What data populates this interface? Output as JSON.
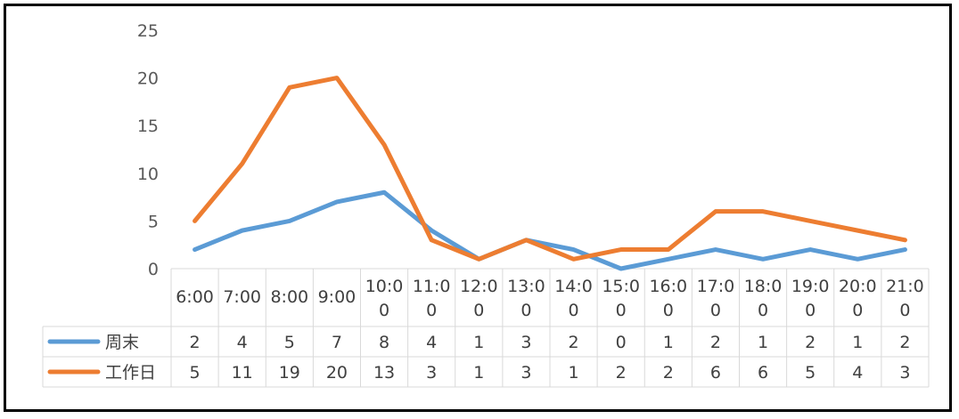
{
  "chart_data": {
    "type": "line",
    "categories": [
      "6:00",
      "7:00",
      "8:00",
      "9:00",
      "10:00",
      "11:00",
      "12:00",
      "13:00",
      "14:00",
      "15:00",
      "16:00",
      "17:00",
      "18:00",
      "19:00",
      "20:00",
      "21:00"
    ],
    "category_lines": [
      [
        "6:00"
      ],
      [
        "7:00"
      ],
      [
        "8:00"
      ],
      [
        "9:00"
      ],
      [
        "10:0",
        "0"
      ],
      [
        "11:0",
        "0"
      ],
      [
        "12:0",
        "0"
      ],
      [
        "13:0",
        "0"
      ],
      [
        "14:0",
        "0"
      ],
      [
        "15:0",
        "0"
      ],
      [
        "16:0",
        "0"
      ],
      [
        "17:0",
        "0"
      ],
      [
        "18:0",
        "0"
      ],
      [
        "19:0",
        "0"
      ],
      [
        "20:0",
        "0"
      ],
      [
        "21:0",
        "0"
      ]
    ],
    "series": [
      {
        "name": "周末",
        "color": "#5B9BD5",
        "values": [
          2,
          4,
          5,
          7,
          8,
          4,
          1,
          3,
          2,
          0,
          1,
          2,
          1,
          2,
          1,
          2
        ]
      },
      {
        "name": "工作日",
        "color": "#ED7D31",
        "values": [
          5,
          11,
          19,
          20,
          13,
          3,
          1,
          3,
          1,
          2,
          2,
          6,
          6,
          5,
          4,
          3
        ]
      }
    ],
    "ylim": [
      0,
      25
    ],
    "yticks": [
      0,
      5,
      10,
      15,
      20,
      25
    ],
    "title": "",
    "xlabel": "",
    "ylabel": "",
    "grid": false,
    "data_table": true
  }
}
